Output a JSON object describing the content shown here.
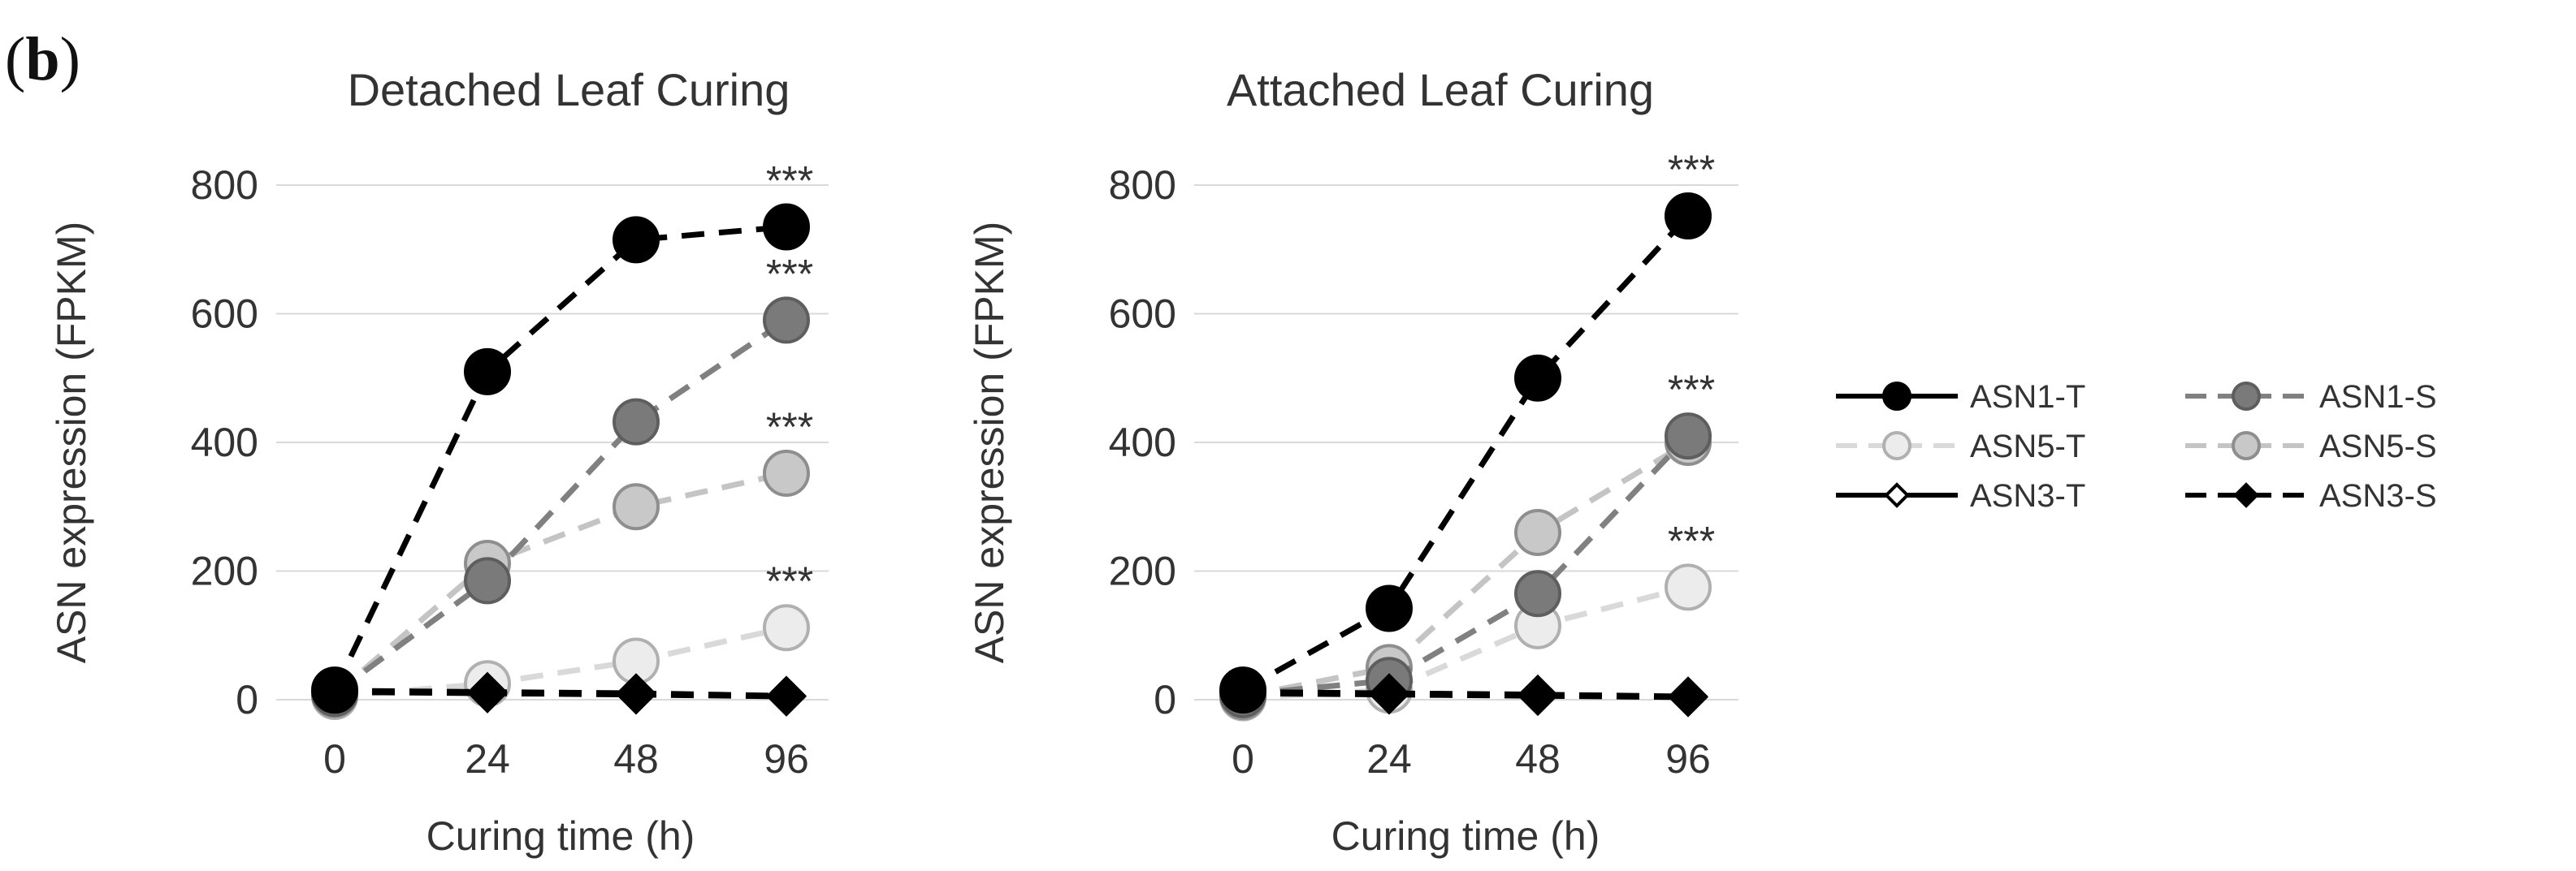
{
  "panel_label": "b",
  "chart_data": [
    {
      "type": "line",
      "title": "Detached Leaf Curing",
      "xlabel": "Curing time (h)",
      "ylabel": "ASN expression (FPKM)",
      "categories": [
        "0",
        "24",
        "48",
        "96"
      ],
      "ylim": [
        0,
        800
      ],
      "yticks": [
        "0",
        "200",
        "400",
        "600",
        "800"
      ],
      "grid": true,
      "series": [
        {
          "name": "ASN1-T",
          "values": [
            15,
            510,
            715,
            735
          ]
        },
        {
          "name": "ASN1-S",
          "values": [
            10,
            185,
            432,
            590
          ]
        },
        {
          "name": "ASN5-T",
          "values": [
            5,
            25,
            60,
            112
          ]
        },
        {
          "name": "ASN5-S",
          "values": [
            8,
            212,
            300,
            352
          ]
        },
        {
          "name": "ASN3-T",
          "values": [
            12,
            10,
            8,
            5
          ]
        },
        {
          "name": "ASN3-S",
          "values": [
            14,
            12,
            10,
            6
          ]
        }
      ],
      "annotations": [
        {
          "text": "***",
          "category": "96",
          "value": 735
        },
        {
          "text": "***",
          "category": "96",
          "value": 590
        },
        {
          "text": "***",
          "category": "96",
          "value": 352
        },
        {
          "text": "***",
          "category": "96",
          "value": 112
        }
      ]
    },
    {
      "type": "line",
      "title": "Attached Leaf Curing",
      "xlabel": "Curing time (h)",
      "ylabel": "ASN expression (FPKM)",
      "categories": [
        "0",
        "24",
        "48",
        "96"
      ],
      "ylim": [
        0,
        800
      ],
      "yticks": [
        "0",
        "200",
        "400",
        "600",
        "800"
      ],
      "grid": true,
      "series": [
        {
          "name": "ASN1-T",
          "values": [
            15,
            142,
            500,
            752
          ]
        },
        {
          "name": "ASN1-S",
          "values": [
            8,
            30,
            165,
            410
          ]
        },
        {
          "name": "ASN5-T",
          "values": [
            3,
            15,
            115,
            175
          ]
        },
        {
          "name": "ASN5-S",
          "values": [
            5,
            50,
            260,
            400
          ]
        },
        {
          "name": "ASN3-T",
          "values": [
            10,
            8,
            6,
            4
          ]
        },
        {
          "name": "ASN3-S",
          "values": [
            12,
            10,
            8,
            5
          ]
        }
      ],
      "annotations": [
        {
          "text": "***",
          "category": "96",
          "value": 752
        },
        {
          "text": "***",
          "category": "96",
          "value": 410
        },
        {
          "text": "***",
          "category": "96",
          "value": 175
        }
      ]
    }
  ],
  "legend": {
    "placement": "right",
    "entries": [
      "ASN1-T",
      "ASN1-S",
      "ASN5-T",
      "ASN5-S",
      "ASN3-T",
      "ASN3-S"
    ]
  },
  "series_styles": {
    "ASN1-T": {
      "line": "#000000",
      "fill": "#000000",
      "stroke": "#000000",
      "marker": "circle"
    },
    "ASN1-S": {
      "line": "#808080",
      "fill": "#7a7a7a",
      "stroke": "#5e5e5e",
      "marker": "circle"
    },
    "ASN5-T": {
      "line": "#d9d9d9",
      "fill": "#ececec",
      "stroke": "#b0b0b0",
      "marker": "circle"
    },
    "ASN5-S": {
      "line": "#c4c4c4",
      "fill": "#c8c8c8",
      "stroke": "#8e8e8e",
      "marker": "circle"
    },
    "ASN3-T": {
      "line": "#000000",
      "fill": "#ffffff",
      "stroke": "#000000",
      "marker": "diamond"
    },
    "ASN3-S": {
      "line": "#000000",
      "fill": "#000000",
      "stroke": "#000000",
      "marker": "diamond"
    }
  },
  "colors": {
    "grid": "#d9d9d9",
    "text": "#333333"
  }
}
